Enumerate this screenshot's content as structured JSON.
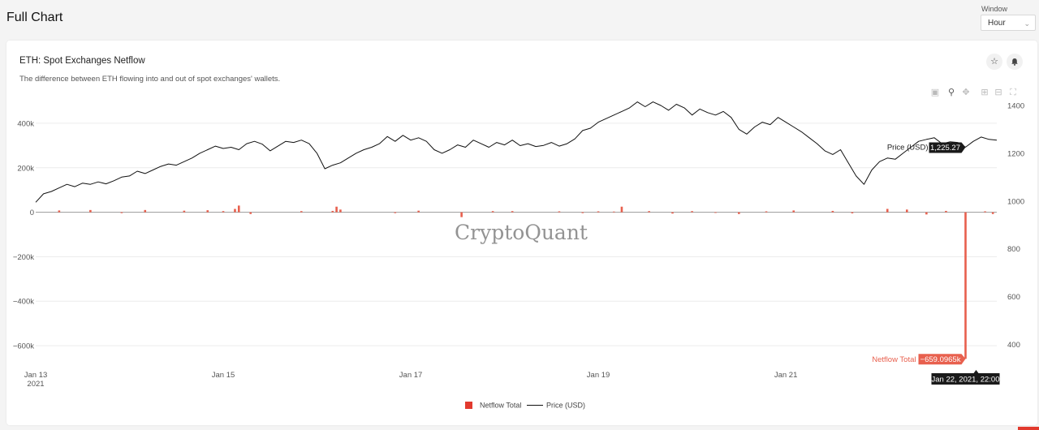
{
  "page": {
    "title": "Full Chart"
  },
  "window": {
    "label": "Window",
    "value": "Hour"
  },
  "card": {
    "title": "ETH: Spot Exchanges Netflow",
    "subtitle": "The difference between ETH flowing into and out of spot exchanges' wallets.",
    "icons": {
      "favorite": "star-icon",
      "alert": "bell-icon"
    },
    "toolbar": [
      "camera-icon",
      "zoom-icon",
      "pan-icon",
      "zoom-in-icon",
      "zoom-out-icon",
      "autoscale-icon"
    ]
  },
  "watermark": "CryptoQuant",
  "colors": {
    "netflow": "#e8604e",
    "price": "#111111",
    "accent": "#e23a2e"
  },
  "chart_data": {
    "type": "bar",
    "x_ticks": [
      {
        "date": "2021-01-13",
        "label": "Jan 13",
        "sublabel": "2021"
      },
      {
        "date": "2021-01-15",
        "label": "Jan 15",
        "sublabel": ""
      },
      {
        "date": "2021-01-17",
        "label": "Jan 17",
        "sublabel": ""
      },
      {
        "date": "2021-01-19",
        "label": "Jan 19",
        "sublabel": ""
      },
      {
        "date": "2021-01-21",
        "label": "Jan 21",
        "sublabel": ""
      }
    ],
    "x_range": [
      "2021-01-13T00:00",
      "2021-01-23T06:00"
    ],
    "y_left": {
      "ticks": [
        400000,
        200000,
        0,
        -200000,
        -400000,
        -600000
      ],
      "tick_labels": [
        "400k",
        "200k",
        "0",
        "−200k",
        "−400k",
        "−600k"
      ],
      "range": [
        -680000,
        480000
      ]
    },
    "y_right": {
      "ticks": [
        1400,
        1200,
        1000,
        800,
        600,
        400
      ],
      "tick_labels": [
        "1400",
        "1200",
        "1000",
        "800",
        "600",
        "400"
      ],
      "range": [
        320,
        1400
      ]
    },
    "series": [
      {
        "name": "Netflow Total",
        "type": "bar",
        "axis": "left",
        "points": [
          [
            "2021-01-13T06:00",
            8000
          ],
          [
            "2021-01-13T14:00",
            10000
          ],
          [
            "2021-01-13T22:00",
            -4000
          ],
          [
            "2021-01-14T04:00",
            10000
          ],
          [
            "2021-01-14T14:00",
            7000
          ],
          [
            "2021-01-14T20:00",
            9000
          ],
          [
            "2021-01-15T00:00",
            5000
          ],
          [
            "2021-01-15T03:00",
            15000
          ],
          [
            "2021-01-15T04:00",
            30000
          ],
          [
            "2021-01-15T07:00",
            -8000
          ],
          [
            "2021-01-15T20:00",
            5000
          ],
          [
            "2021-01-16T04:00",
            6000
          ],
          [
            "2021-01-16T05:00",
            25000
          ],
          [
            "2021-01-16T06:00",
            12000
          ],
          [
            "2021-01-16T20:00",
            -4000
          ],
          [
            "2021-01-17T02:00",
            7000
          ],
          [
            "2021-01-17T13:00",
            -22000
          ],
          [
            "2021-01-17T21:00",
            5000
          ],
          [
            "2021-01-18T02:00",
            5000
          ],
          [
            "2021-01-18T14:00",
            4000
          ],
          [
            "2021-01-18T20:00",
            -4000
          ],
          [
            "2021-01-19T00:00",
            4000
          ],
          [
            "2021-01-19T04:00",
            3000
          ],
          [
            "2021-01-19T06:00",
            25000
          ],
          [
            "2021-01-19T13:00",
            5000
          ],
          [
            "2021-01-19T19:00",
            -6000
          ],
          [
            "2021-01-20T00:00",
            5000
          ],
          [
            "2021-01-20T06:00",
            -3000
          ],
          [
            "2021-01-20T12:00",
            -8000
          ],
          [
            "2021-01-20T19:00",
            4000
          ],
          [
            "2021-01-21T02:00",
            8000
          ],
          [
            "2021-01-21T12:00",
            6000
          ],
          [
            "2021-01-21T17:00",
            -5000
          ],
          [
            "2021-01-22T02:00",
            15000
          ],
          [
            "2021-01-22T07:00",
            12000
          ],
          [
            "2021-01-22T12:00",
            -10000
          ],
          [
            "2021-01-22T17:00",
            6000
          ],
          [
            "2021-01-22T22:00",
            -659096.5
          ],
          [
            "2021-01-23T03:00",
            4000
          ],
          [
            "2021-01-23T05:00",
            -8000
          ]
        ]
      },
      {
        "name": "Price (USD)",
        "type": "line",
        "axis": "right",
        "points": [
          [
            "2021-01-13T00:00",
            995
          ],
          [
            "2021-01-13T02:00",
            1030
          ],
          [
            "2021-01-13T04:00",
            1040
          ],
          [
            "2021-01-13T06:00",
            1055
          ],
          [
            "2021-01-13T08:00",
            1070
          ],
          [
            "2021-01-13T10:00",
            1060
          ],
          [
            "2021-01-13T12:00",
            1075
          ],
          [
            "2021-01-13T14:00",
            1070
          ],
          [
            "2021-01-13T16:00",
            1080
          ],
          [
            "2021-01-13T18:00",
            1072
          ],
          [
            "2021-01-13T20:00",
            1085
          ],
          [
            "2021-01-13T22:00",
            1100
          ],
          [
            "2021-01-14T00:00",
            1105
          ],
          [
            "2021-01-14T02:00",
            1125
          ],
          [
            "2021-01-14T04:00",
            1115
          ],
          [
            "2021-01-14T06:00",
            1130
          ],
          [
            "2021-01-14T08:00",
            1145
          ],
          [
            "2021-01-14T10:00",
            1155
          ],
          [
            "2021-01-14T12:00",
            1150
          ],
          [
            "2021-01-14T14:00",
            1165
          ],
          [
            "2021-01-14T16:00",
            1180
          ],
          [
            "2021-01-14T18:00",
            1200
          ],
          [
            "2021-01-14T20:00",
            1215
          ],
          [
            "2021-01-14T22:00",
            1230
          ],
          [
            "2021-01-15T00:00",
            1220
          ],
          [
            "2021-01-15T02:00",
            1225
          ],
          [
            "2021-01-15T04:00",
            1215
          ],
          [
            "2021-01-15T06:00",
            1240
          ],
          [
            "2021-01-15T08:00",
            1250
          ],
          [
            "2021-01-15T10:00",
            1238
          ],
          [
            "2021-01-15T12:00",
            1210
          ],
          [
            "2021-01-15T14:00",
            1230
          ],
          [
            "2021-01-15T16:00",
            1250
          ],
          [
            "2021-01-15T18:00",
            1245
          ],
          [
            "2021-01-15T20:00",
            1255
          ],
          [
            "2021-01-15T22:00",
            1240
          ],
          [
            "2021-01-16T00:00",
            1200
          ],
          [
            "2021-01-16T02:00",
            1135
          ],
          [
            "2021-01-16T04:00",
            1150
          ],
          [
            "2021-01-16T06:00",
            1160
          ],
          [
            "2021-01-16T08:00",
            1180
          ],
          [
            "2021-01-16T10:00",
            1200
          ],
          [
            "2021-01-16T12:00",
            1215
          ],
          [
            "2021-01-16T14:00",
            1225
          ],
          [
            "2021-01-16T16:00",
            1240
          ],
          [
            "2021-01-16T18:00",
            1270
          ],
          [
            "2021-01-16T20:00",
            1250
          ],
          [
            "2021-01-16T22:00",
            1275
          ],
          [
            "2021-01-17T00:00",
            1255
          ],
          [
            "2021-01-17T02:00",
            1265
          ],
          [
            "2021-01-17T04:00",
            1250
          ],
          [
            "2021-01-17T06:00",
            1215
          ],
          [
            "2021-01-17T08:00",
            1200
          ],
          [
            "2021-01-17T10:00",
            1215
          ],
          [
            "2021-01-17T12:00",
            1235
          ],
          [
            "2021-01-17T14:00",
            1225
          ],
          [
            "2021-01-17T16:00",
            1255
          ],
          [
            "2021-01-17T18:00",
            1240
          ],
          [
            "2021-01-17T20:00",
            1225
          ],
          [
            "2021-01-17T22:00",
            1245
          ],
          [
            "2021-01-18T00:00",
            1235
          ],
          [
            "2021-01-18T02:00",
            1255
          ],
          [
            "2021-01-18T04:00",
            1232
          ],
          [
            "2021-01-18T06:00",
            1240
          ],
          [
            "2021-01-18T08:00",
            1228
          ],
          [
            "2021-01-18T10:00",
            1233
          ],
          [
            "2021-01-18T12:00",
            1245
          ],
          [
            "2021-01-18T14:00",
            1230
          ],
          [
            "2021-01-18T16:00",
            1240
          ],
          [
            "2021-01-18T18:00",
            1260
          ],
          [
            "2021-01-18T20:00",
            1295
          ],
          [
            "2021-01-18T22:00",
            1305
          ],
          [
            "2021-01-19T00:00",
            1330
          ],
          [
            "2021-01-19T02:00",
            1345
          ],
          [
            "2021-01-19T04:00",
            1360
          ],
          [
            "2021-01-19T06:00",
            1375
          ],
          [
            "2021-01-19T08:00",
            1390
          ],
          [
            "2021-01-19T10:00",
            1415
          ],
          [
            "2021-01-19T12:00",
            1395
          ],
          [
            "2021-01-19T14:00",
            1415
          ],
          [
            "2021-01-19T16:00",
            1400
          ],
          [
            "2021-01-19T18:00",
            1380
          ],
          [
            "2021-01-19T20:00",
            1405
          ],
          [
            "2021-01-19T22:00",
            1390
          ],
          [
            "2021-01-20T00:00",
            1360
          ],
          [
            "2021-01-20T02:00",
            1385
          ],
          [
            "2021-01-20T04:00",
            1370
          ],
          [
            "2021-01-20T06:00",
            1360
          ],
          [
            "2021-01-20T08:00",
            1375
          ],
          [
            "2021-01-20T10:00",
            1350
          ],
          [
            "2021-01-20T12:00",
            1300
          ],
          [
            "2021-01-20T14:00",
            1280
          ],
          [
            "2021-01-20T16:00",
            1310
          ],
          [
            "2021-01-20T18:00",
            1330
          ],
          [
            "2021-01-20T20:00",
            1320
          ],
          [
            "2021-01-20T22:00",
            1350
          ],
          [
            "2021-01-21T00:00",
            1330
          ],
          [
            "2021-01-21T02:00",
            1310
          ],
          [
            "2021-01-21T04:00",
            1290
          ],
          [
            "2021-01-21T06:00",
            1265
          ],
          [
            "2021-01-21T08:00",
            1240
          ],
          [
            "2021-01-21T10:00",
            1210
          ],
          [
            "2021-01-21T12:00",
            1195
          ],
          [
            "2021-01-21T14:00",
            1215
          ],
          [
            "2021-01-21T16:00",
            1160
          ],
          [
            "2021-01-21T18:00",
            1105
          ],
          [
            "2021-01-21T20:00",
            1070
          ],
          [
            "2021-01-21T22:00",
            1130
          ],
          [
            "2021-01-22T00:00",
            1165
          ],
          [
            "2021-01-22T02:00",
            1180
          ],
          [
            "2021-01-22T04:00",
            1175
          ],
          [
            "2021-01-22T06:00",
            1200
          ],
          [
            "2021-01-22T08:00",
            1225
          ],
          [
            "2021-01-22T10:00",
            1250
          ],
          [
            "2021-01-22T12:00",
            1258
          ],
          [
            "2021-01-22T14:00",
            1265
          ],
          [
            "2021-01-22T16:00",
            1240
          ],
          [
            "2021-01-22T18:00",
            1248
          ],
          [
            "2021-01-22T20:00",
            1245
          ],
          [
            "2021-01-22T22:00",
            1225.27
          ],
          [
            "2021-01-23T00:00",
            1250
          ],
          [
            "2021-01-23T02:00",
            1268
          ],
          [
            "2021-01-23T04:00",
            1258
          ],
          [
            "2021-01-23T06:00",
            1255
          ]
        ]
      }
    ],
    "hover": {
      "date_label": "Jan 22, 2021, 22:00",
      "netflow_name": "Netflow Total",
      "netflow_label": "−659.0965k",
      "price_name": "Price (USD)",
      "price_label": "1,225.27"
    },
    "legend": {
      "placement": "bottom-center"
    },
    "grid": true
  }
}
